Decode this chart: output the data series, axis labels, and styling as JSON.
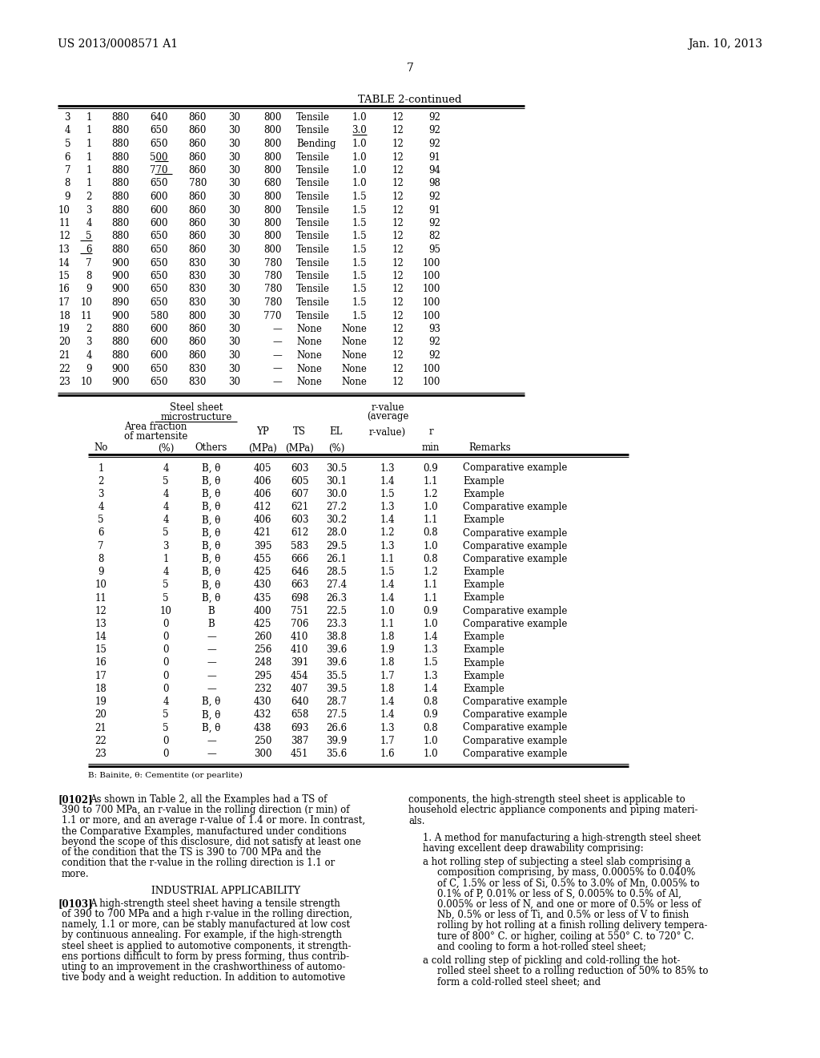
{
  "header_left": "US 2013/0008571 A1",
  "header_right": "Jan. 10, 2013",
  "page_number": "7",
  "table_title": "TABLE 2-continued",
  "table1_rows": [
    [
      "3",
      "1",
      "880",
      "640",
      "860",
      "30",
      "800",
      "Tensile",
      "1.0",
      "12",
      "92"
    ],
    [
      "4",
      "1",
      "880",
      "650",
      "860",
      "30",
      "800",
      "Tensile",
      "3.0",
      "12",
      "92"
    ],
    [
      "5",
      "1",
      "880",
      "650",
      "860",
      "30",
      "800",
      "Bending",
      "1.0",
      "12",
      "92"
    ],
    [
      "6",
      "1",
      "880",
      "500",
      "860",
      "30",
      "800",
      "Tensile",
      "1.0",
      "12",
      "91"
    ],
    [
      "7",
      "1",
      "880",
      "770",
      "860",
      "30",
      "800",
      "Tensile",
      "1.0",
      "12",
      "94"
    ],
    [
      "8",
      "1",
      "880",
      "650",
      "780",
      "30",
      "680",
      "Tensile",
      "1.0",
      "12",
      "98"
    ],
    [
      "9",
      "2",
      "880",
      "600",
      "860",
      "30",
      "800",
      "Tensile",
      "1.5",
      "12",
      "92"
    ],
    [
      "10",
      "3",
      "880",
      "600",
      "860",
      "30",
      "800",
      "Tensile",
      "1.5",
      "12",
      "91"
    ],
    [
      "11",
      "4",
      "880",
      "600",
      "860",
      "30",
      "800",
      "Tensile",
      "1.5",
      "12",
      "92"
    ],
    [
      "12",
      "5",
      "880",
      "650",
      "860",
      "30",
      "800",
      "Tensile",
      "1.5",
      "12",
      "82"
    ],
    [
      "13",
      "6",
      "880",
      "650",
      "860",
      "30",
      "800",
      "Tensile",
      "1.5",
      "12",
      "95"
    ],
    [
      "14",
      "7",
      "900",
      "650",
      "830",
      "30",
      "780",
      "Tensile",
      "1.5",
      "12",
      "100"
    ],
    [
      "15",
      "8",
      "900",
      "650",
      "830",
      "30",
      "780",
      "Tensile",
      "1.5",
      "12",
      "100"
    ],
    [
      "16",
      "9",
      "900",
      "650",
      "830",
      "30",
      "780",
      "Tensile",
      "1.5",
      "12",
      "100"
    ],
    [
      "17",
      "10",
      "890",
      "650",
      "830",
      "30",
      "780",
      "Tensile",
      "1.5",
      "12",
      "100"
    ],
    [
      "18",
      "11",
      "900",
      "580",
      "800",
      "30",
      "770",
      "Tensile",
      "1.5",
      "12",
      "100"
    ],
    [
      "19",
      "2",
      "880",
      "600",
      "860",
      "30",
      "—",
      "None",
      "None",
      "12",
      "93"
    ],
    [
      "20",
      "3",
      "880",
      "600",
      "860",
      "30",
      "—",
      "None",
      "None",
      "12",
      "92"
    ],
    [
      "21",
      "4",
      "880",
      "600",
      "860",
      "30",
      "—",
      "None",
      "None",
      "12",
      "92"
    ],
    [
      "22",
      "9",
      "900",
      "650",
      "830",
      "30",
      "—",
      "None",
      "None",
      "12",
      "100"
    ],
    [
      "23",
      "10",
      "900",
      "650",
      "830",
      "30",
      "—",
      "None",
      "None",
      "12",
      "100"
    ]
  ],
  "underline_t1_r1_c8": true,
  "underline_t1_r3_c3": true,
  "underline_t1_r4_c3": true,
  "underline_t1_r9_c1": true,
  "underline_t1_r10_c1": true,
  "table2_rows": [
    [
      "1",
      "4",
      "B, θ",
      "405",
      "603",
      "30.5",
      "1.3",
      "0.9",
      "Comparative example"
    ],
    [
      "2",
      "5",
      "B, θ",
      "406",
      "605",
      "30.1",
      "1.4",
      "1.1",
      "Example"
    ],
    [
      "3",
      "4",
      "B, θ",
      "406",
      "607",
      "30.0",
      "1.5",
      "1.2",
      "Example"
    ],
    [
      "4",
      "4",
      "B, θ",
      "412",
      "621",
      "27.2",
      "1.3",
      "1.0",
      "Comparative example"
    ],
    [
      "5",
      "4",
      "B, θ",
      "406",
      "603",
      "30.2",
      "1.4",
      "1.1",
      "Example"
    ],
    [
      "6",
      "5",
      "B, θ",
      "421",
      "612",
      "28.0",
      "1.2",
      "0.8",
      "Comparative example"
    ],
    [
      "7",
      "3",
      "B, θ",
      "395",
      "583",
      "29.5",
      "1.3",
      "1.0",
      "Comparative example"
    ],
    [
      "8",
      "1",
      "B, θ",
      "455",
      "666",
      "26.1",
      "1.1",
      "0.8",
      "Comparative example"
    ],
    [
      "9",
      "4",
      "B, θ",
      "425",
      "646",
      "28.5",
      "1.5",
      "1.2",
      "Example"
    ],
    [
      "10",
      "5",
      "B, θ",
      "430",
      "663",
      "27.4",
      "1.4",
      "1.1",
      "Example"
    ],
    [
      "11",
      "5",
      "B, θ",
      "435",
      "698",
      "26.3",
      "1.4",
      "1.1",
      "Example"
    ],
    [
      "12",
      "10",
      "B",
      "400",
      "751",
      "22.5",
      "1.0",
      "0.9",
      "Comparative example"
    ],
    [
      "13",
      "0",
      "B",
      "425",
      "706",
      "23.3",
      "1.1",
      "1.0",
      "Comparative example"
    ],
    [
      "14",
      "0",
      "—",
      "260",
      "410",
      "38.8",
      "1.8",
      "1.4",
      "Example"
    ],
    [
      "15",
      "0",
      "—",
      "256",
      "410",
      "39.6",
      "1.9",
      "1.3",
      "Example"
    ],
    [
      "16",
      "0",
      "—",
      "248",
      "391",
      "39.6",
      "1.8",
      "1.5",
      "Example"
    ],
    [
      "17",
      "0",
      "—",
      "295",
      "454",
      "35.5",
      "1.7",
      "1.3",
      "Example"
    ],
    [
      "18",
      "0",
      "—",
      "232",
      "407",
      "39.5",
      "1.8",
      "1.4",
      "Example"
    ],
    [
      "19",
      "4",
      "B, θ",
      "430",
      "640",
      "28.7",
      "1.4",
      "0.8",
      "Comparative example"
    ],
    [
      "20",
      "5",
      "B, θ",
      "432",
      "658",
      "27.5",
      "1.4",
      "0.9",
      "Comparative example"
    ],
    [
      "21",
      "5",
      "B, θ",
      "438",
      "693",
      "26.6",
      "1.3",
      "0.8",
      "Comparative example"
    ],
    [
      "22",
      "0",
      "—",
      "250",
      "387",
      "39.9",
      "1.7",
      "1.0",
      "Comparative example"
    ],
    [
      "23",
      "0",
      "—",
      "300",
      "451",
      "35.6",
      "1.6",
      "1.0",
      "Comparative example"
    ]
  ],
  "footnote": "B: Bainite, θ: Cementite (or pearlite)",
  "para102_tag": "[0102]",
  "para102_lines": [
    "As shown in Table 2, all the Examples had a TS of",
    "390 to 700 MPa, an r-value in the rolling direction (r min) of",
    "1.1 or more, and an average r-value of 1.4 or more. In contrast,",
    "the Comparative Examples, manufactured under conditions",
    "beyond the scope of this disclosure, did not satisfy at least one",
    "of the condition that the TS is 390 to 700 MPa and the",
    "condition that the r-value in the rolling direction is 1.1 or",
    "more."
  ],
  "industrial_heading": "INDUSTRIAL APPLICABILITY",
  "para103_tag": "[0103]",
  "para103_lines": [
    "A high-strength steel sheet having a tensile strength",
    "of 390 to 700 MPa and a high r-value in the rolling direction,",
    "namely, 1.1 or more, can be stably manufactured at low cost",
    "by continuous annealing. For example, if the high-strength",
    "steel sheet is applied to automotive components, it strength-",
    "ens portions difficult to form by press forming, thus contrib-",
    "uting to an improvement in the crashworthiness of automo-",
    "tive body and a weight reduction. In addition to automotive"
  ],
  "right_para1_lines": [
    "components, the high-strength steel sheet is applicable to",
    "household electric appliance components and piping materi-",
    "als."
  ],
  "right_claim1_lines": [
    "1. A method for manufacturing a high-strength steel sheet",
    "having excellent deep drawability comprising:"
  ],
  "right_claim1a_lines": [
    "a hot rolling step of subjecting a steel slab comprising a",
    "    composition comprising, by mass, 0.0005% to 0.040%",
    "    of C, 1.5% or less of Si, 0.5% to 3.0% of Mn, 0.005% to",
    "    0.1% of P, 0.01% or less of S, 0.005% to 0.5% of Al,",
    "    0.005% or less of N, and one or more of 0.5% or less of",
    "    Nb, 0.5% or less of Ti, and 0.5% or less of V to finish",
    "    rolling by hot rolling at a finish rolling delivery tempera-",
    "    ture of 800° C. or higher, coiling at 550° C. to 720° C.",
    "    and cooling to form a hot-rolled steel sheet;"
  ],
  "right_claim1b_lines": [
    "a cold rolling step of pickling and cold-rolling the hot-",
    "    rolled steel sheet to a rolling reduction of 50% to 85% to",
    "    form a cold-rolled steel sheet; and"
  ]
}
